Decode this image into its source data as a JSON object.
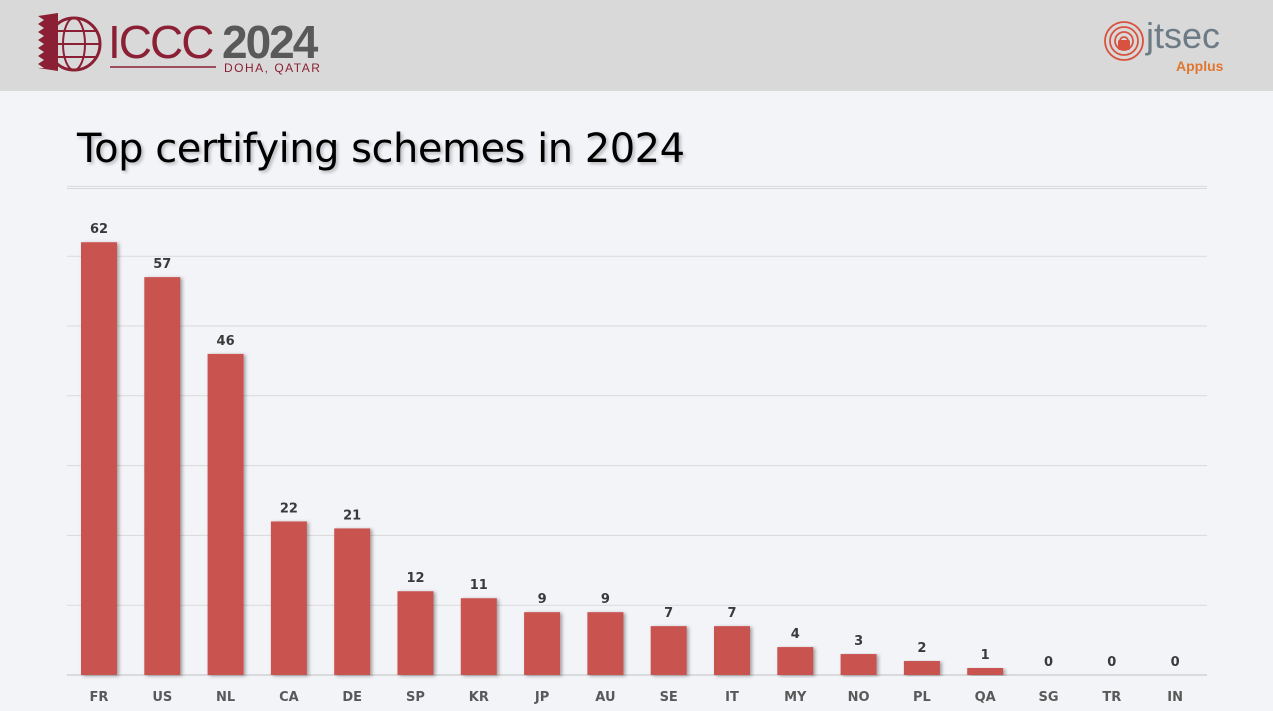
{
  "header": {
    "event_logo": {
      "main_text": "ICCC",
      "year": "2024",
      "location": "DOHA, QATAR"
    },
    "partner_logo": {
      "brand": "jtsec",
      "parent": "Applus"
    },
    "background_color": "#d9d9d9"
  },
  "slide": {
    "title": "Top certifying schemes in 2024"
  },
  "chart_data": {
    "type": "bar",
    "categories": [
      "FR",
      "US",
      "NL",
      "CA",
      "DE",
      "SP",
      "KR",
      "JP",
      "AU",
      "SE",
      "IT",
      "MY",
      "NO",
      "PL",
      "QA",
      "SG",
      "TR",
      "IN"
    ],
    "values": [
      62,
      57,
      46,
      22,
      21,
      12,
      11,
      9,
      9,
      7,
      7,
      4,
      3,
      2,
      1,
      0,
      0,
      0
    ],
    "title": "",
    "xlabel": "",
    "ylabel": "",
    "ylim": [
      0,
      70
    ],
    "grid": true,
    "data_labels": true,
    "bar_color": "#c85250"
  }
}
